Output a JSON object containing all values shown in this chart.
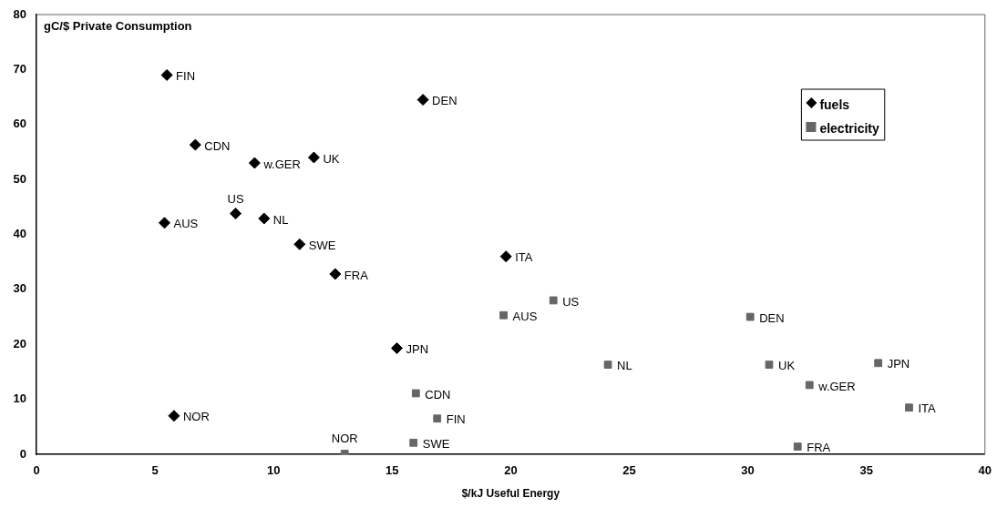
{
  "chart_data": {
    "type": "scatter",
    "xlabel": "$/kJ Useful Energy",
    "ylabel": "gC/$ Private Consumption",
    "xlim": [
      0,
      40
    ],
    "xticks": [
      0,
      5,
      10,
      15,
      20,
      25,
      30,
      35,
      40
    ],
    "ylim": [
      0,
      80
    ],
    "yticks": [
      0,
      10,
      20,
      30,
      40,
      50,
      60,
      70,
      80
    ],
    "grid": false,
    "legend": "right",
    "series": [
      {
        "name": "fuels",
        "color": "#000000",
        "marker": "diamond",
        "x": [
          5.5,
          16.3,
          6.7,
          9.2,
          11.7,
          8.4,
          9.6,
          5.4,
          11.1,
          12.6,
          19.8,
          15.2,
          5.8
        ],
        "values": [
          69,
          64.5,
          56.3,
          53,
          54,
          43.8,
          42.9,
          42.1,
          38.2,
          32.8,
          36,
          19.3,
          7
        ]
      },
      {
        "name": "electricity",
        "color": "#666666",
        "marker": "square",
        "x": [
          21.8,
          19.7,
          30.1,
          24.1,
          30.9,
          35.5,
          32.6,
          36.8,
          16,
          16.9,
          15.9,
          13,
          32.1
        ],
        "values": [
          28,
          25.3,
          25,
          16.3,
          16.3,
          16.6,
          12.6,
          8.5,
          11.1,
          6.5,
          2.1,
          0.1,
          1.4
        ]
      }
    ],
    "annotations": [
      {
        "text": "FIN",
        "x": 5.5,
        "y": 69
      },
      {
        "text": "DEN",
        "x": 16.3,
        "y": 64.5
      },
      {
        "text": "CDN",
        "x": 6.7,
        "y": 56.3
      },
      {
        "text": "w.GER",
        "x": 9.2,
        "y": 53
      },
      {
        "text": "UK",
        "x": 11.7,
        "y": 54
      },
      {
        "text": "US",
        "x": 8.4,
        "y": 43.8
      },
      {
        "text": "NL",
        "x": 9.6,
        "y": 42.9
      },
      {
        "text": "AUS",
        "x": 5.4,
        "y": 42.1
      },
      {
        "text": "SWE",
        "x": 11.1,
        "y": 38.2
      },
      {
        "text": "FRA",
        "x": 12.6,
        "y": 32.8
      },
      {
        "text": "ITA",
        "x": 19.8,
        "y": 36
      },
      {
        "text": "JPN",
        "x": 15.2,
        "y": 19.3
      },
      {
        "text": "NOR",
        "x": 5.8,
        "y": 7
      },
      {
        "text": "US",
        "x": 21.8,
        "y": 28
      },
      {
        "text": "AUS",
        "x": 19.7,
        "y": 25.3
      },
      {
        "text": "DEN",
        "x": 30.1,
        "y": 25
      },
      {
        "text": "NL",
        "x": 24.1,
        "y": 16.3
      },
      {
        "text": "UK",
        "x": 30.9,
        "y": 16.3
      },
      {
        "text": "JPN",
        "x": 35.5,
        "y": 16.6
      },
      {
        "text": "w.GER",
        "x": 32.6,
        "y": 12.6
      },
      {
        "text": "ITA",
        "x": 36.8,
        "y": 8.5
      },
      {
        "text": "CDN",
        "x": 16,
        "y": 11.1
      },
      {
        "text": "FIN",
        "x": 16.9,
        "y": 6.5
      },
      {
        "text": "SWE",
        "x": 15.9,
        "y": 2.1
      },
      {
        "text": "NOR",
        "x": 13,
        "y": 0.1
      },
      {
        "text": "FRA",
        "x": 32.1,
        "y": 1.4
      }
    ]
  }
}
